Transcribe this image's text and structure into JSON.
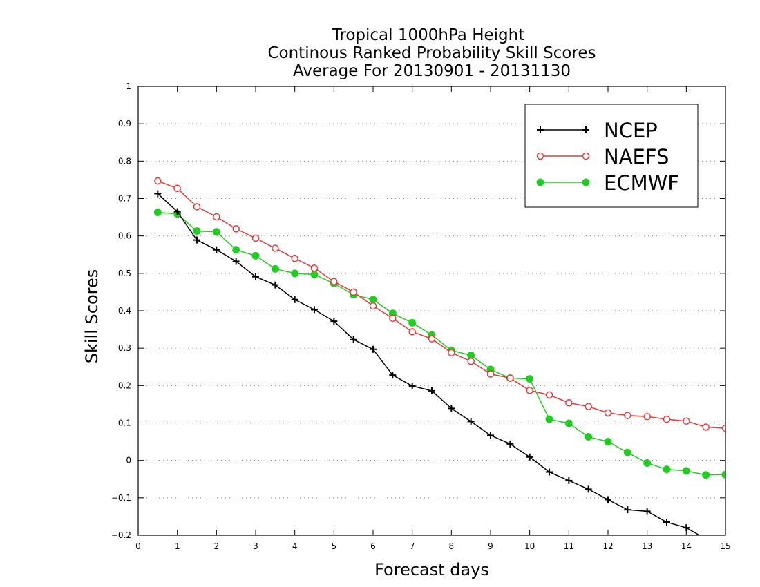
{
  "chart_data": {
    "type": "line",
    "title": [
      "Tropical 1000hPa Height",
      "Continous Ranked Probability Skill Scores",
      "Average For 20130901 - 20131130"
    ],
    "xlabel": "Forecast days",
    "ylabel": "Skill Scores",
    "xlim": [
      0,
      15
    ],
    "ylim": [
      -0.2,
      1
    ],
    "xticks": [
      "0",
      "1",
      "2",
      "3",
      "4",
      "5",
      "6",
      "7",
      "8",
      "9",
      "10",
      "11",
      "12",
      "13",
      "14",
      "15"
    ],
    "yticks": [
      "1",
      "0.9",
      "0.8",
      "0.7",
      "0.6",
      "0.5",
      "0.4",
      "0.3",
      "0.2",
      "0.1",
      "0",
      "−0.1",
      "−0.2"
    ],
    "grid": "horizontal dotted",
    "legend_position": "top-right",
    "x": [
      0.5,
      1,
      1.5,
      2,
      2.5,
      3,
      3.5,
      4,
      4.5,
      5,
      5.5,
      6,
      6.5,
      7,
      7.5,
      8,
      8.5,
      9,
      9.5,
      10,
      10.5,
      11,
      11.5,
      12,
      12.5,
      13,
      13.5,
      14,
      14.5,
      15
    ],
    "series": [
      {
        "name": "NCEP",
        "color": "#000000",
        "marker": "plus",
        "values": [
          0.713,
          0.665,
          0.589,
          0.563,
          0.532,
          0.491,
          0.469,
          0.43,
          0.403,
          0.372,
          0.323,
          0.297,
          0.228,
          0.199,
          0.186,
          0.139,
          0.104,
          0.067,
          0.044,
          0.009,
          -0.031,
          -0.054,
          -0.077,
          -0.105,
          -0.132,
          -0.136,
          -0.165,
          -0.18,
          -0.21,
          -0.23
        ]
      },
      {
        "name": "NAEFS",
        "color": "#e8383a",
        "marker": "open-circle",
        "values": [
          0.747,
          0.727,
          0.678,
          0.651,
          0.619,
          0.594,
          0.567,
          0.54,
          0.514,
          0.478,
          0.45,
          0.413,
          0.38,
          0.344,
          0.325,
          0.288,
          0.265,
          0.231,
          0.22,
          0.187,
          0.175,
          0.154,
          0.144,
          0.127,
          0.12,
          0.117,
          0.11,
          0.105,
          0.089,
          0.086
        ]
      },
      {
        "name": "ECMWF",
        "color": "#22cc22",
        "marker": "filled-circle",
        "values": [
          0.663,
          0.659,
          0.613,
          0.611,
          0.563,
          0.547,
          0.512,
          0.5,
          0.497,
          0.473,
          0.443,
          0.43,
          0.393,
          0.368,
          0.335,
          0.294,
          0.281,
          0.243,
          0.22,
          0.218,
          0.11,
          0.099,
          0.063,
          0.05,
          0.021,
          -0.007,
          -0.024,
          -0.028,
          -0.039,
          -0.038
        ]
      }
    ]
  }
}
